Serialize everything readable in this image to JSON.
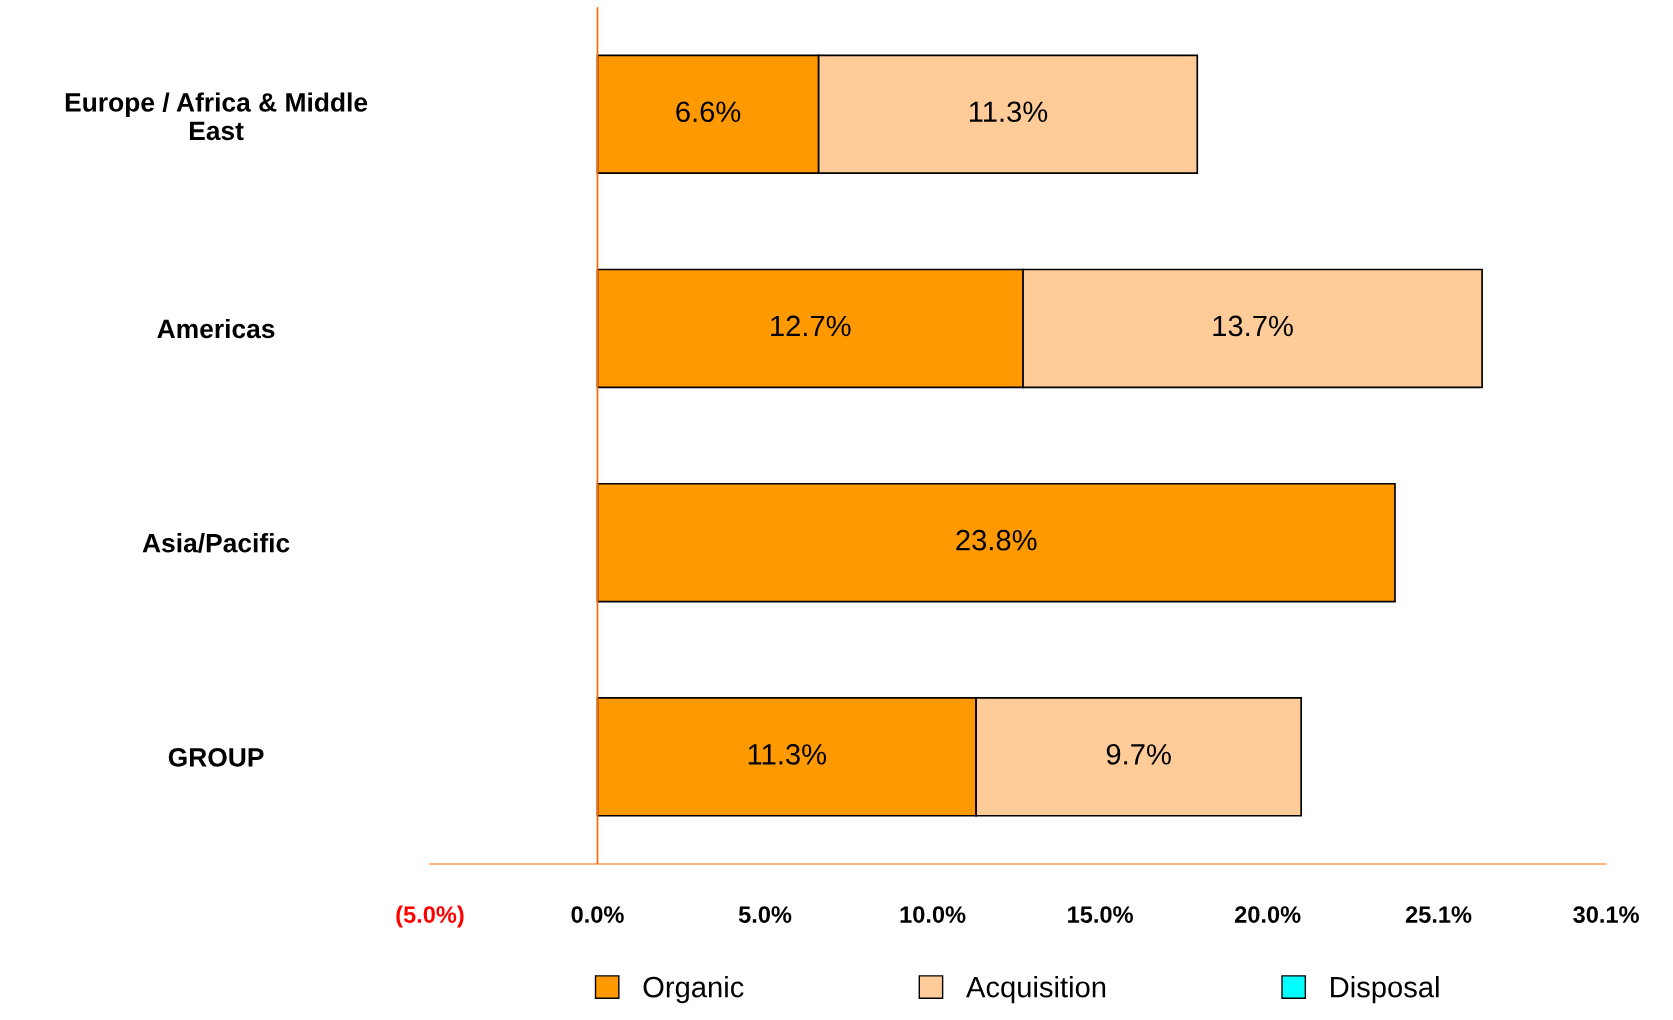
{
  "chart_data": {
    "type": "bar",
    "orientation": "horizontal",
    "stacked": true,
    "categories": [
      "Europe / Africa & Middle\nEast",
      "Americas",
      "Asia/Pacific",
      "GROUP"
    ],
    "series": [
      {
        "name": "Organic",
        "color": "#ff9900",
        "values": [
          6.6,
          12.7,
          23.8,
          11.3
        ],
        "value_labels": [
          "6.6%",
          "12.7%",
          "23.8%",
          "11.3%"
        ]
      },
      {
        "name": "Acquisition",
        "color": "#ffcc99",
        "values": [
          11.3,
          13.7,
          null,
          9.7
        ],
        "value_labels": [
          "11.3%",
          "13.7%",
          null,
          "9.7%"
        ]
      },
      {
        "name": "Disposal",
        "color": "#00ffff",
        "values": [
          null,
          null,
          null,
          null
        ]
      }
    ],
    "ref_lines": [
      {
        "axis": "x",
        "value": 0,
        "color": "#ff6600"
      }
    ],
    "xlim": [
      -5.0,
      30.1
    ],
    "xticks": [
      {
        "value": -5.0,
        "label": "(5.0%)"
      },
      {
        "value": 0,
        "label": "0.0%"
      },
      {
        "value": 5.0,
        "label": "5.0%"
      },
      {
        "value": 10.0,
        "label": "10.0%"
      },
      {
        "value": 15.0,
        "label": "15.0%"
      },
      {
        "value": 20.0,
        "label": "20.0%"
      },
      {
        "value": 25.1,
        "label": "25.1%"
      },
      {
        "value": 30.1,
        "label": "30.1%"
      }
    ],
    "grid": false,
    "legend": "bottom"
  }
}
